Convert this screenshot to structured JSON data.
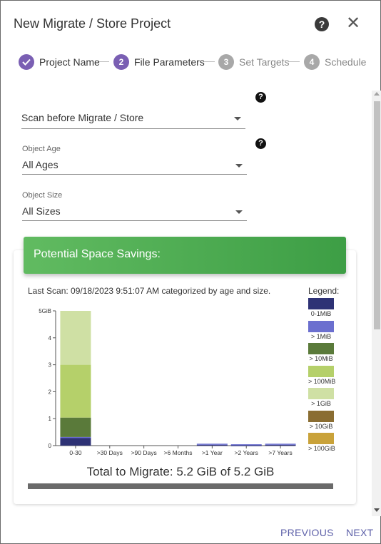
{
  "dialog": {
    "title": "New Migrate / Store Project"
  },
  "icons": {
    "help": "?",
    "close": "✕"
  },
  "stepper": [
    {
      "number": "✓",
      "label": "Project Name",
      "state": "done",
      "color": "#7a5fb3"
    },
    {
      "number": "2",
      "label": "File Parameters",
      "state": "active",
      "color": "#7a5fb3"
    },
    {
      "number": "3",
      "label": "Set Targets",
      "state": "pending",
      "color": "#a8a8a8"
    },
    {
      "number": "4",
      "label": "Schedule",
      "state": "pending",
      "color": "#a8a8a8"
    }
  ],
  "form": {
    "scan_select": {
      "label": "",
      "value": "Scan before Migrate / Store"
    },
    "object_age": {
      "label": "Object Age",
      "value": "All Ages"
    },
    "object_size": {
      "label": "Object Size",
      "value": "All Sizes"
    }
  },
  "savings": {
    "banner": "Potential Space Savings:",
    "last_scan": "Last Scan: 09/18/2023 9:51:07 AM categorized by age and size.",
    "legend_title": "Legend:",
    "total": "Total to Migrate: 5.2 GiB of 5.2 GiB",
    "total_fraction": 1.0
  },
  "chart_data": {
    "type": "bar",
    "stacked": true,
    "categories": [
      "0-30",
      ">30 Days",
      ">90 Days",
      ">6 Months",
      ">1 Year",
      ">2 Years",
      ">7 Years"
    ],
    "y_ticks": [
      "0",
      "1",
      "2",
      "3",
      "4",
      "5GiB"
    ],
    "ylim": [
      0,
      5
    ],
    "series": [
      {
        "name": "0-1MiB",
        "color": "#2e3275",
        "values": [
          0.3,
          0,
          0,
          0,
          0.03,
          0.02,
          0.03
        ]
      },
      {
        "name": "> 1MiB",
        "color": "#6b6fcf",
        "values": [
          0.02,
          0,
          0,
          0,
          0.04,
          0.03,
          0.04
        ]
      },
      {
        "name": "> 10MiB",
        "color": "#5a7a3a",
        "values": [
          0.72,
          0,
          0,
          0,
          0,
          0,
          0
        ]
      },
      {
        "name": "> 100MiB",
        "color": "#b5d06a",
        "values": [
          1.96,
          0,
          0,
          0,
          0,
          0,
          0
        ]
      },
      {
        "name": "> 1GiB",
        "color": "#cfe0a4",
        "values": [
          2.0,
          0,
          0,
          0,
          0,
          0,
          0
        ]
      },
      {
        "name": "> 10GiB",
        "color": "#8a6d32",
        "values": [
          0,
          0,
          0,
          0,
          0,
          0,
          0
        ]
      },
      {
        "name": "> 100GiB",
        "color": "#c9a23a",
        "values": [
          0,
          0,
          0,
          0,
          0,
          0,
          0
        ]
      }
    ]
  },
  "footer": {
    "previous": "PREVIOUS",
    "next": "NEXT"
  }
}
